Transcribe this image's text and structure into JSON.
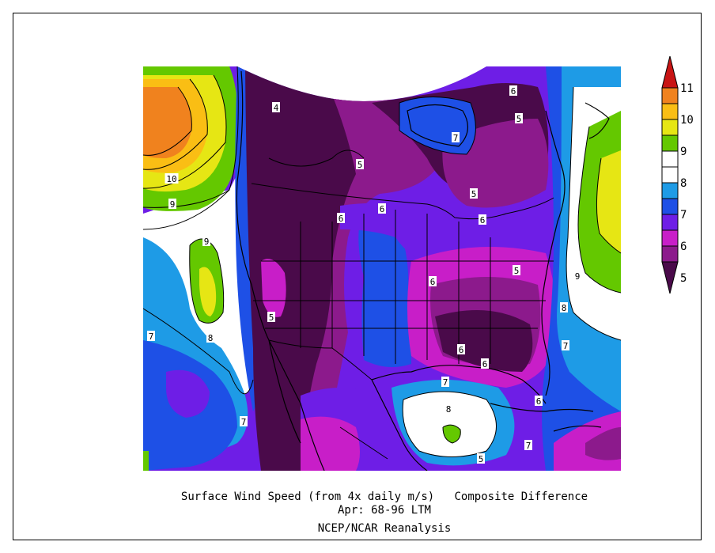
{
  "colors": {
    "lt5": "#4a0a4a",
    "c5_55": "#8c1a8c",
    "c55_6": "#c81ec8",
    "c6_65": "#6e1ee6",
    "c65_7": "#1e50e6",
    "c7_75": "#1e9be6",
    "c75_85": "#ffffff",
    "c85_9": "#64c800",
    "c9_95": "#e6e614",
    "c95_10": "#fabe14",
    "c10_105": "#f0821e",
    "gt105": "#c81414"
  },
  "colorbar": {
    "labels": [
      "5",
      "6",
      "7",
      "8",
      "9",
      "10",
      "11"
    ]
  },
  "map_labels": [
    {
      "text": "4"
    },
    {
      "text": "5"
    },
    {
      "text": "5"
    },
    {
      "text": "5"
    },
    {
      "text": "5"
    },
    {
      "text": "5"
    },
    {
      "text": "5"
    },
    {
      "text": "6"
    },
    {
      "text": "6"
    },
    {
      "text": "6"
    },
    {
      "text": "6"
    },
    {
      "text": "6"
    },
    {
      "text": "6"
    },
    {
      "text": "6"
    },
    {
      "text": "6"
    },
    {
      "text": "7"
    },
    {
      "text": "7"
    },
    {
      "text": "7"
    },
    {
      "text": "7"
    },
    {
      "text": "7"
    },
    {
      "text": "7"
    },
    {
      "text": "8"
    },
    {
      "text": "8"
    },
    {
      "text": "8"
    },
    {
      "text": "9"
    },
    {
      "text": "9"
    },
    {
      "text": "9"
    },
    {
      "text": "10"
    }
  ],
  "captions": {
    "line1": "Surface Wind Speed (from 4x daily m/s)   Composite Difference",
    "line2": "Apr: 68-96 LTM",
    "line3": "NCEP/NCAR Reanalysis"
  }
}
